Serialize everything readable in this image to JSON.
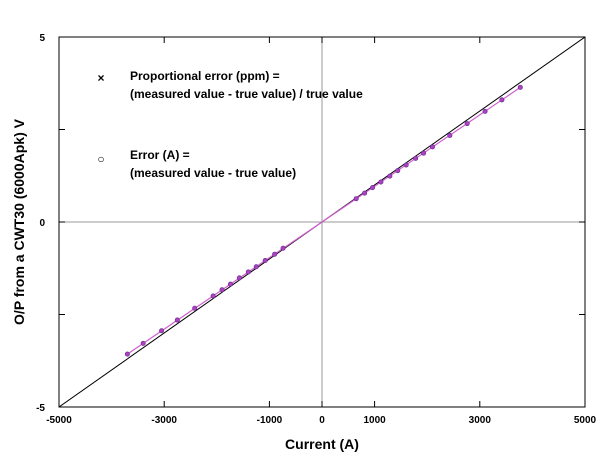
{
  "chart_data": {
    "type": "scatter",
    "xlabel": "Current (A)",
    "ylabel": "O/P from a CWT30 (6000Apk) V",
    "xlim": [
      -5000,
      5000
    ],
    "ylim": [
      -5,
      5
    ],
    "x_ticks": [
      -5000,
      -3000,
      -1000,
      0,
      1000,
      3000,
      5000
    ],
    "x_tick_labels": [
      "-5000",
      "-3000",
      "-1000",
      "0",
      "1000",
      "3000",
      "5000"
    ],
    "y_ticks": [
      -5,
      0,
      5
    ],
    "y_tick_labels": [
      "-5",
      "0",
      "5"
    ],
    "y_minor_ticks": [
      -2.5,
      2.5
    ],
    "grid": false,
    "zero_lines": true,
    "reference_line": {
      "slope": 0.001,
      "color": "#000000"
    },
    "fit_line": {
      "slope": 0.000965,
      "x_range": [
        -3700,
        3770
      ],
      "color": "#d060d0"
    },
    "legend": {
      "placement": "top-left",
      "entries": [
        {
          "marker": "×",
          "color": "#ff0000",
          "line1": "Proportional error (ppm) =",
          "line2": "(measured value - true value) / true value"
        },
        {
          "marker": "○",
          "color": "#0000cc",
          "line1": "Error (A) =",
          "line2": "(measured value - true value)"
        }
      ]
    },
    "series": [
      {
        "marker": "circle",
        "color": "#b040c0",
        "x": [
          -3700,
          -3400,
          -3050,
          -2750,
          -2420,
          -2070,
          -1900,
          -1740,
          -1570,
          -1400,
          -1250,
          -1080,
          -900,
          -740,
          650,
          810,
          960,
          1120,
          1290,
          1440,
          1600,
          1780,
          1930,
          2100,
          2430,
          2760,
          3100,
          3420,
          3770
        ],
        "y": [
          -3.57,
          -3.28,
          -2.94,
          -2.65,
          -2.33,
          -2.0,
          -1.83,
          -1.68,
          -1.51,
          -1.35,
          -1.21,
          -1.04,
          -0.87,
          -0.71,
          0.63,
          0.78,
          0.93,
          1.08,
          1.24,
          1.39,
          1.54,
          1.72,
          1.86,
          2.03,
          2.34,
          2.66,
          2.99,
          3.3,
          3.64
        ]
      }
    ]
  }
}
